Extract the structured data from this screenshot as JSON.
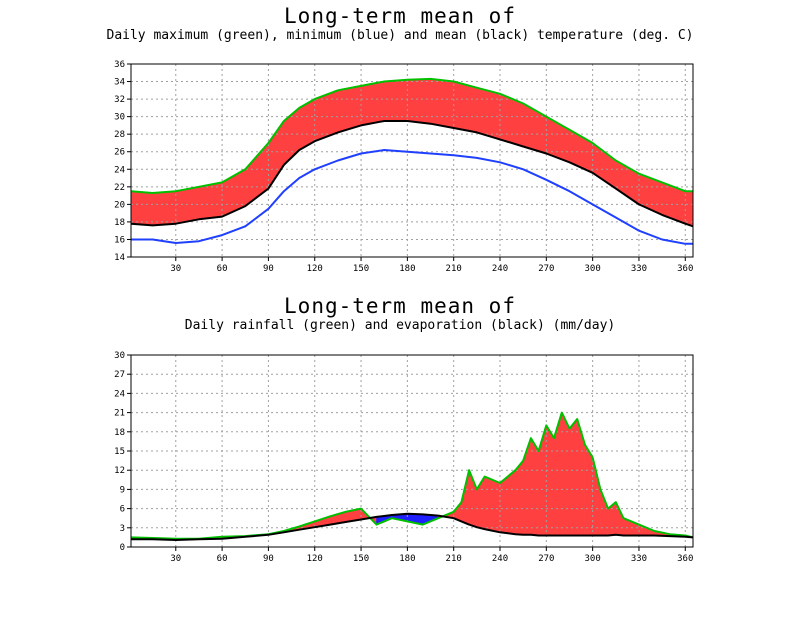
{
  "charts": [
    {
      "title": "Long-term mean of",
      "subtitle": "Daily maximum (green), minimum (blue) and mean (black) temperature (deg. C)"
    },
    {
      "title": "Long-term mean of",
      "subtitle": "Daily rainfall (green) and evaporation (black) (mm/day)"
    }
  ],
  "colors": {
    "fill_main": "#ff4040",
    "fill_alt": "#2020ff",
    "green": "#00c000",
    "blue": "#2040ff",
    "black": "#000000",
    "grid": "#a0a0a0"
  },
  "chart_data": [
    {
      "type": "area",
      "xlim": [
        1,
        365
      ],
      "ylim": [
        14,
        36
      ],
      "grid": true,
      "x_ticks": [
        30,
        60,
        90,
        120,
        150,
        180,
        210,
        240,
        270,
        300,
        330,
        360
      ],
      "y_ticks": [
        14,
        16,
        18,
        20,
        22,
        24,
        26,
        28,
        30,
        32,
        34,
        36
      ],
      "x": [
        1,
        15,
        30,
        45,
        60,
        75,
        90,
        100,
        110,
        120,
        135,
        150,
        165,
        180,
        195,
        210,
        225,
        240,
        255,
        270,
        285,
        300,
        315,
        330,
        345,
        360,
        365
      ],
      "series": [
        {
          "name": "maximum",
          "color": "green",
          "values": [
            21.5,
            21.3,
            21.5,
            22.0,
            22.5,
            24.0,
            27.0,
            29.5,
            31.0,
            32.0,
            33.0,
            33.5,
            34.0,
            34.2,
            34.3,
            34.0,
            33.3,
            32.6,
            31.5,
            30.0,
            28.5,
            27.0,
            25.0,
            23.5,
            22.5,
            21.5,
            21.5
          ]
        },
        {
          "name": "minimum",
          "color": "blue",
          "values": [
            16.0,
            16.0,
            15.6,
            15.8,
            16.5,
            17.5,
            19.5,
            21.5,
            23.0,
            24.0,
            25.0,
            25.8,
            26.2,
            26.0,
            25.8,
            25.6,
            25.3,
            24.8,
            24.0,
            22.8,
            21.5,
            20.0,
            18.5,
            17.0,
            16.0,
            15.5,
            15.5
          ]
        },
        {
          "name": "mean",
          "color": "black",
          "values": [
            17.8,
            17.6,
            17.8,
            18.3,
            18.6,
            19.8,
            21.8,
            24.5,
            26.2,
            27.2,
            28.2,
            29.0,
            29.5,
            29.5,
            29.2,
            28.7,
            28.2,
            27.4,
            26.6,
            25.8,
            24.8,
            23.6,
            21.8,
            20.0,
            18.8,
            17.8,
            17.5
          ]
        }
      ]
    },
    {
      "type": "area",
      "xlim": [
        1,
        365
      ],
      "ylim": [
        0,
        30
      ],
      "grid": true,
      "x_ticks": [
        30,
        60,
        90,
        120,
        150,
        180,
        210,
        240,
        270,
        300,
        330,
        360
      ],
      "y_ticks": [
        0,
        3,
        6,
        9,
        12,
        15,
        18,
        21,
        24,
        27,
        30
      ],
      "x": [
        1,
        15,
        30,
        45,
        60,
        75,
        90,
        100,
        110,
        120,
        130,
        140,
        150,
        160,
        170,
        180,
        190,
        200,
        210,
        215,
        220,
        225,
        230,
        240,
        250,
        255,
        260,
        265,
        270,
        275,
        280,
        285,
        290,
        295,
        300,
        305,
        310,
        315,
        320,
        330,
        340,
        350,
        360,
        365
      ],
      "series": [
        {
          "name": "rainfall",
          "color": "green",
          "values": [
            1.5,
            1.4,
            1.3,
            1.3,
            1.6,
            1.7,
            2.0,
            2.5,
            3.2,
            4.0,
            4.8,
            5.5,
            6.0,
            3.5,
            4.5,
            4.0,
            3.5,
            4.5,
            5.5,
            7.0,
            12.0,
            9.0,
            11.0,
            10.0,
            12.0,
            13.5,
            17.0,
            15.0,
            19.0,
            17.0,
            21.0,
            18.5,
            20.0,
            16.0,
            14.0,
            9.0,
            6.0,
            7.0,
            4.5,
            3.5,
            2.5,
            2.0,
            1.8,
            1.5
          ]
        },
        {
          "name": "evaporation",
          "color": "black",
          "values": [
            1.2,
            1.2,
            1.1,
            1.2,
            1.3,
            1.6,
            1.9,
            2.3,
            2.7,
            3.1,
            3.5,
            3.9,
            4.3,
            4.7,
            5.0,
            5.2,
            5.1,
            4.9,
            4.5,
            4.0,
            3.5,
            3.1,
            2.8,
            2.3,
            2.0,
            1.9,
            1.9,
            1.8,
            1.8,
            1.8,
            1.8,
            1.8,
            1.8,
            1.8,
            1.8,
            1.8,
            1.8,
            1.9,
            1.8,
            1.8,
            1.8,
            1.7,
            1.6,
            1.5
          ]
        }
      ]
    }
  ]
}
